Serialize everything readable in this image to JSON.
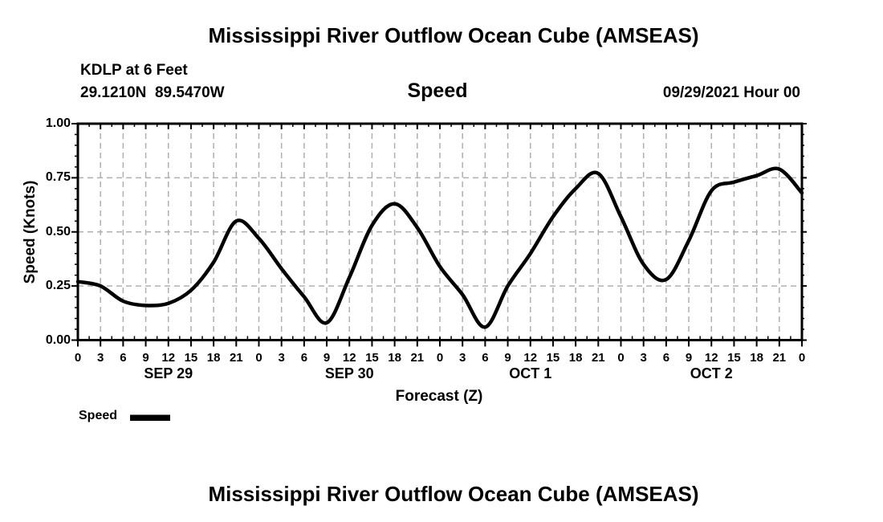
{
  "header": {
    "top_title": "Mississippi River Outflow Ocean Cube (AMSEAS)",
    "station_line1": "KDLP at 6 Feet",
    "station_line2": "29.1210N  89.5470W",
    "panel_title": "Speed",
    "run_label": "09/29/2021 Hour 00"
  },
  "footer": {
    "bottom_title": "Mississippi River Outflow Ocean Cube (AMSEAS)"
  },
  "chart_data": {
    "type": "line",
    "title": "Speed",
    "xlabel": "Forecast (Z)",
    "ylabel": "Speed (Knots)",
    "ylim": [
      0.0,
      1.0
    ],
    "yticks": [
      0.0,
      0.25,
      0.5,
      0.75,
      1.0
    ],
    "ytick_labels": [
      "0.00",
      "0.25",
      "0.50",
      "0.75",
      "1.00"
    ],
    "y_minor_step": 0.05,
    "x_range_hours": [
      0,
      96
    ],
    "x_major_step_hours": 3,
    "x_minor_step_hours": 1.5,
    "x": [
      0,
      3,
      6,
      9,
      12,
      15,
      18,
      21,
      24,
      27,
      30,
      33,
      36,
      39,
      42,
      45,
      48,
      51,
      54,
      57,
      60,
      63,
      66,
      69,
      72,
      75,
      78,
      81,
      84,
      87,
      90,
      93,
      96
    ],
    "xtick_labels": [
      "0",
      "3",
      "6",
      "9",
      "12",
      "15",
      "18",
      "21",
      "0",
      "3",
      "6",
      "9",
      "12",
      "15",
      "18",
      "21",
      "0",
      "3",
      "6",
      "9",
      "12",
      "15",
      "18",
      "21",
      "0",
      "3",
      "6",
      "9",
      "12",
      "15",
      "18",
      "21",
      "0"
    ],
    "day_labels": [
      {
        "label": "SEP 29",
        "hour": 12
      },
      {
        "label": "SEP 30",
        "hour": 36
      },
      {
        "label": "OCT 1",
        "hour": 60
      },
      {
        "label": "OCT 2",
        "hour": 84
      }
    ],
    "series": [
      {
        "name": "Speed",
        "color": "#000000",
        "values": [
          0.27,
          0.25,
          0.18,
          0.16,
          0.17,
          0.23,
          0.36,
          0.55,
          0.47,
          0.33,
          0.2,
          0.08,
          0.29,
          0.53,
          0.63,
          0.52,
          0.34,
          0.21,
          0.06,
          0.25,
          0.4,
          0.57,
          0.7,
          0.77,
          0.57,
          0.35,
          0.28,
          0.46,
          0.69,
          0.73,
          0.76,
          0.79,
          0.68
        ]
      }
    ],
    "grid": "dashed",
    "grid_color": "#b0b0b0",
    "frame_color": "#000000",
    "legend": {
      "label": "Speed",
      "position": "bottom-left",
      "swatch_color": "#000000"
    }
  }
}
